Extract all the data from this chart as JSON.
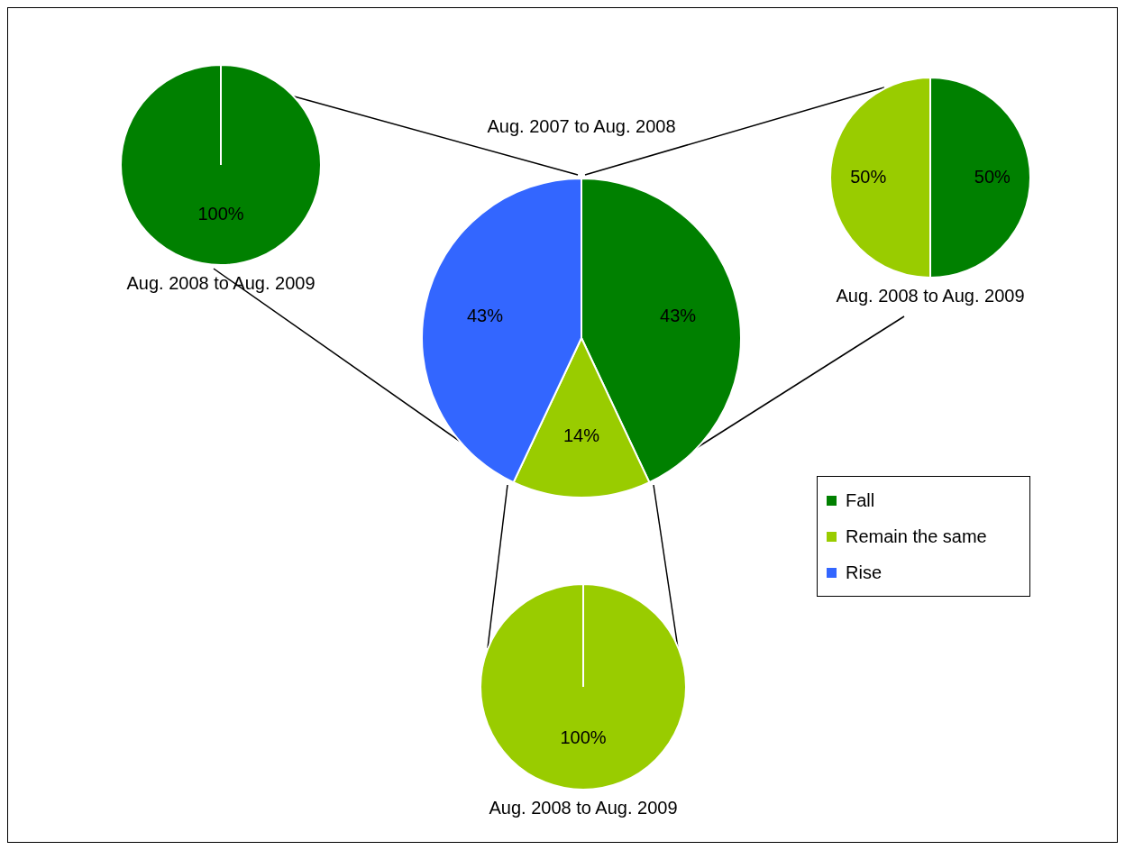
{
  "chart_data": [
    {
      "type": "pie",
      "title": "Aug. 2007 to Aug. 2008",
      "categories": [
        "Fall",
        "Remain the same",
        "Rise"
      ],
      "values": [
        43,
        14,
        43
      ],
      "colors": [
        "#008000",
        "#99cc00",
        "#3366ff"
      ],
      "value_labels": [
        "43%",
        "14%",
        "43%"
      ],
      "legend": "bottom right"
    },
    {
      "type": "pie",
      "title": "Aug. 2008 to Aug. 2009",
      "categories": [
        null
      ],
      "values": [
        100
      ],
      "colors": [
        "#008000"
      ],
      "value_labels": [
        "100%"
      ]
    },
    {
      "type": "pie",
      "title": "Aug. 2008 to Aug. 2009",
      "categories": [
        null,
        null
      ],
      "values": [
        50,
        50
      ],
      "colors": [
        "#008000",
        "#99cc00"
      ],
      "value_labels": [
        "50%",
        "50%"
      ]
    },
    {
      "type": "pie",
      "title": "Aug. 2008 to Aug. 2009",
      "categories": [
        null
      ],
      "values": [
        100
      ],
      "colors": [
        "#99cc00"
      ],
      "value_labels": [
        "100%"
      ]
    }
  ]
}
